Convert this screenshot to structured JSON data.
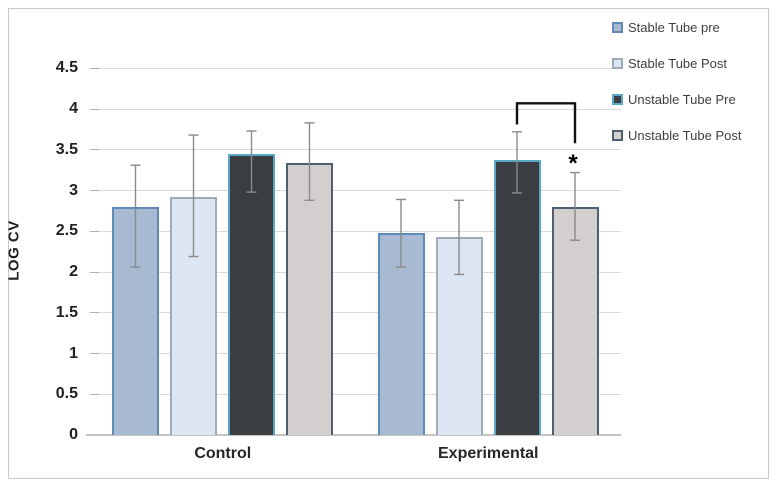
{
  "chart_data": {
    "type": "bar",
    "title": "",
    "xlabel": "",
    "ylabel": "LOG CV",
    "categories": [
      "Control",
      "Experimental"
    ],
    "series": [
      {
        "name": "Stable Tube pre",
        "fill": "#a7bad2",
        "border": "#5f8ab8",
        "values": [
          2.8,
          2.48
        ],
        "err_hi": [
          3.31,
          2.89
        ],
        "err_lo": [
          2.06,
          2.06
        ]
      },
      {
        "name": "Stable Tube Post",
        "fill": "#dce6f2",
        "border": "#9fabb8",
        "values": [
          2.92,
          2.43
        ],
        "err_hi": [
          3.68,
          2.88
        ],
        "err_lo": [
          2.19,
          1.97
        ]
      },
      {
        "name": "Unstable Tube Pre",
        "fill": "#3a3e42",
        "border": "#5aa7c6",
        "values": [
          3.45,
          3.37
        ],
        "err_hi": [
          3.73,
          3.72
        ],
        "err_lo": [
          2.98,
          2.97
        ]
      },
      {
        "name": "Unstable Tube Post",
        "fill": "#d2cfce",
        "border": "#4e5f71",
        "values": [
          3.34,
          2.8
        ],
        "err_hi": [
          3.83,
          3.22
        ],
        "err_lo": [
          2.88,
          2.39
        ]
      }
    ],
    "yticks": [
      0,
      0.5,
      1,
      1.5,
      2,
      2.5,
      3,
      3.5,
      4,
      4.5
    ],
    "ylim": [
      0,
      4.5
    ],
    "grid": true,
    "legend_position": "right",
    "annotation": {
      "type": "significance-bracket",
      "category": "Experimental",
      "between": [
        "Unstable Tube Pre",
        "Unstable Tube Post"
      ],
      "label": "*",
      "top_value": 4.07,
      "left_end_value": 3.81,
      "right_end_value": 3.58,
      "label_value": 3.42
    },
    "colors": {
      "gridline": "#dadada",
      "tick": "#aeaeae",
      "axis_line": "#c4c4c4",
      "error_bar": "#8a8a8a",
      "bracket": "#111111",
      "text": "#1f1f1f",
      "legend_text": "#3f3f3f",
      "figure_border": "#c9c9c9"
    }
  }
}
